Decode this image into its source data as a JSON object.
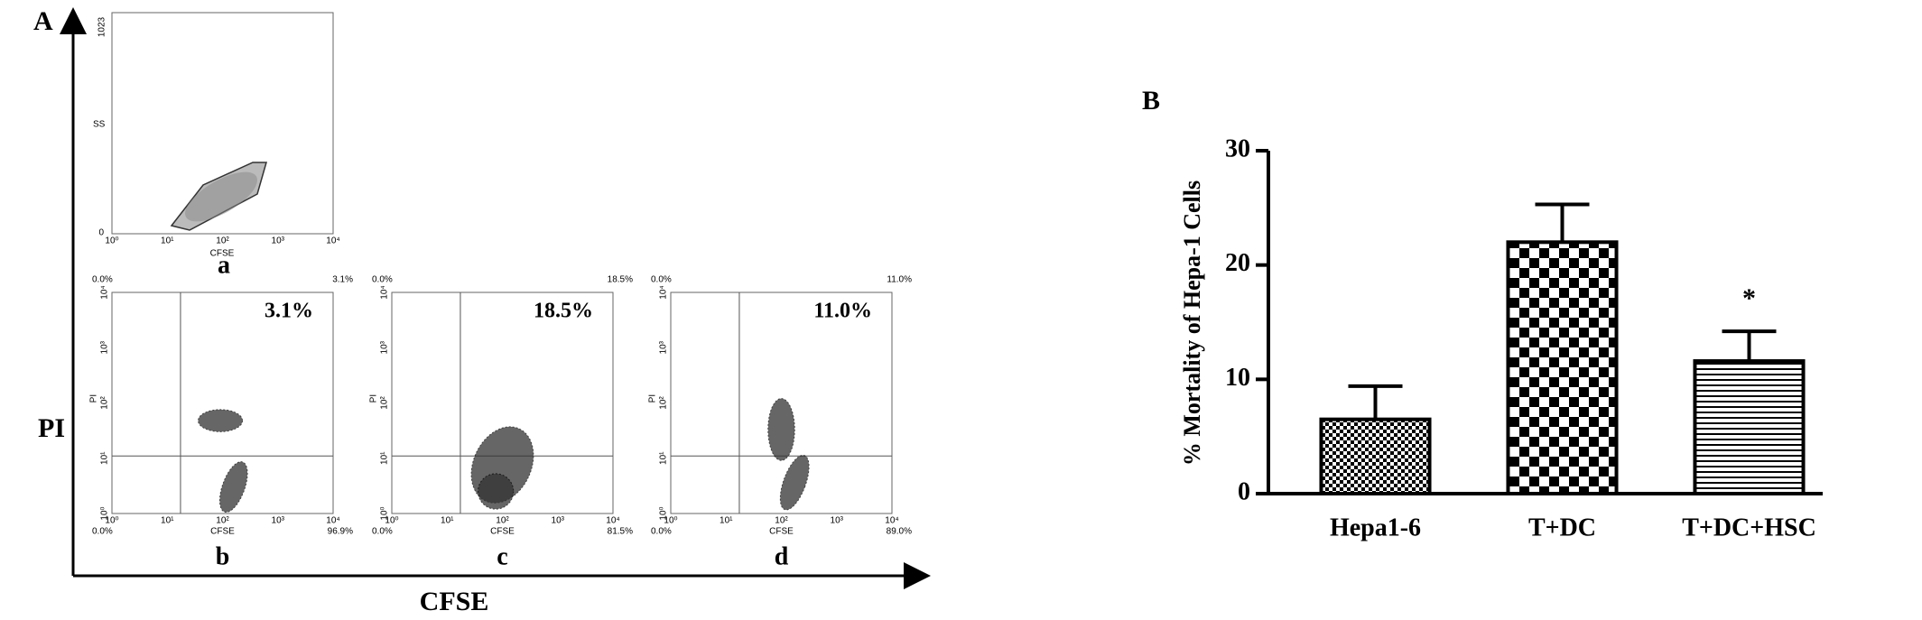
{
  "panel_a": {
    "label": "A",
    "y_label": "PI",
    "x_label": "CFSE",
    "log_ticks": [
      "10⁰",
      "10¹",
      "10²",
      "10³",
      "10⁴"
    ],
    "gate_plot": {
      "label": "a",
      "y_axis": "SS",
      "y_ticks": [
        "0",
        "1023"
      ],
      "x_axis": "CFSE"
    },
    "quadrant_plots": [
      {
        "label": "b",
        "percent": "3.1%",
        "x_axis": "CFSE",
        "y_axis": "PI",
        "quadrants": [
          "0.0%",
          "3.1%",
          "0.0%",
          "96.9%"
        ]
      },
      {
        "label": "c",
        "percent": "18.5%",
        "x_axis": "CFSE",
        "y_axis": "PI",
        "quadrants": [
          "0.0%",
          "18.5%",
          "0.0%",
          "81.5%"
        ]
      },
      {
        "label": "d",
        "percent": "11.0%",
        "x_axis": "CFSE",
        "y_axis": "PI",
        "quadrants": [
          "0.0%",
          "11.0%",
          "0.0%",
          "89.0%"
        ]
      }
    ]
  },
  "chart_data": {
    "type": "bar",
    "panel_label": "B",
    "y_label": "% Mortality of Hepa-1 Cells",
    "categories": [
      "Hepa1-6",
      "T+DC",
      "T+DC+HSC"
    ],
    "values": [
      6.5,
      22,
      11.6
    ],
    "errors": [
      2.9,
      3.3,
      2.6
    ],
    "color": "#000000",
    "ylim": [
      0,
      30
    ],
    "yticks": [
      0,
      10,
      20,
      30
    ],
    "annotations": [
      {
        "text": "*",
        "category": "T+DC+HSC"
      }
    ]
  }
}
